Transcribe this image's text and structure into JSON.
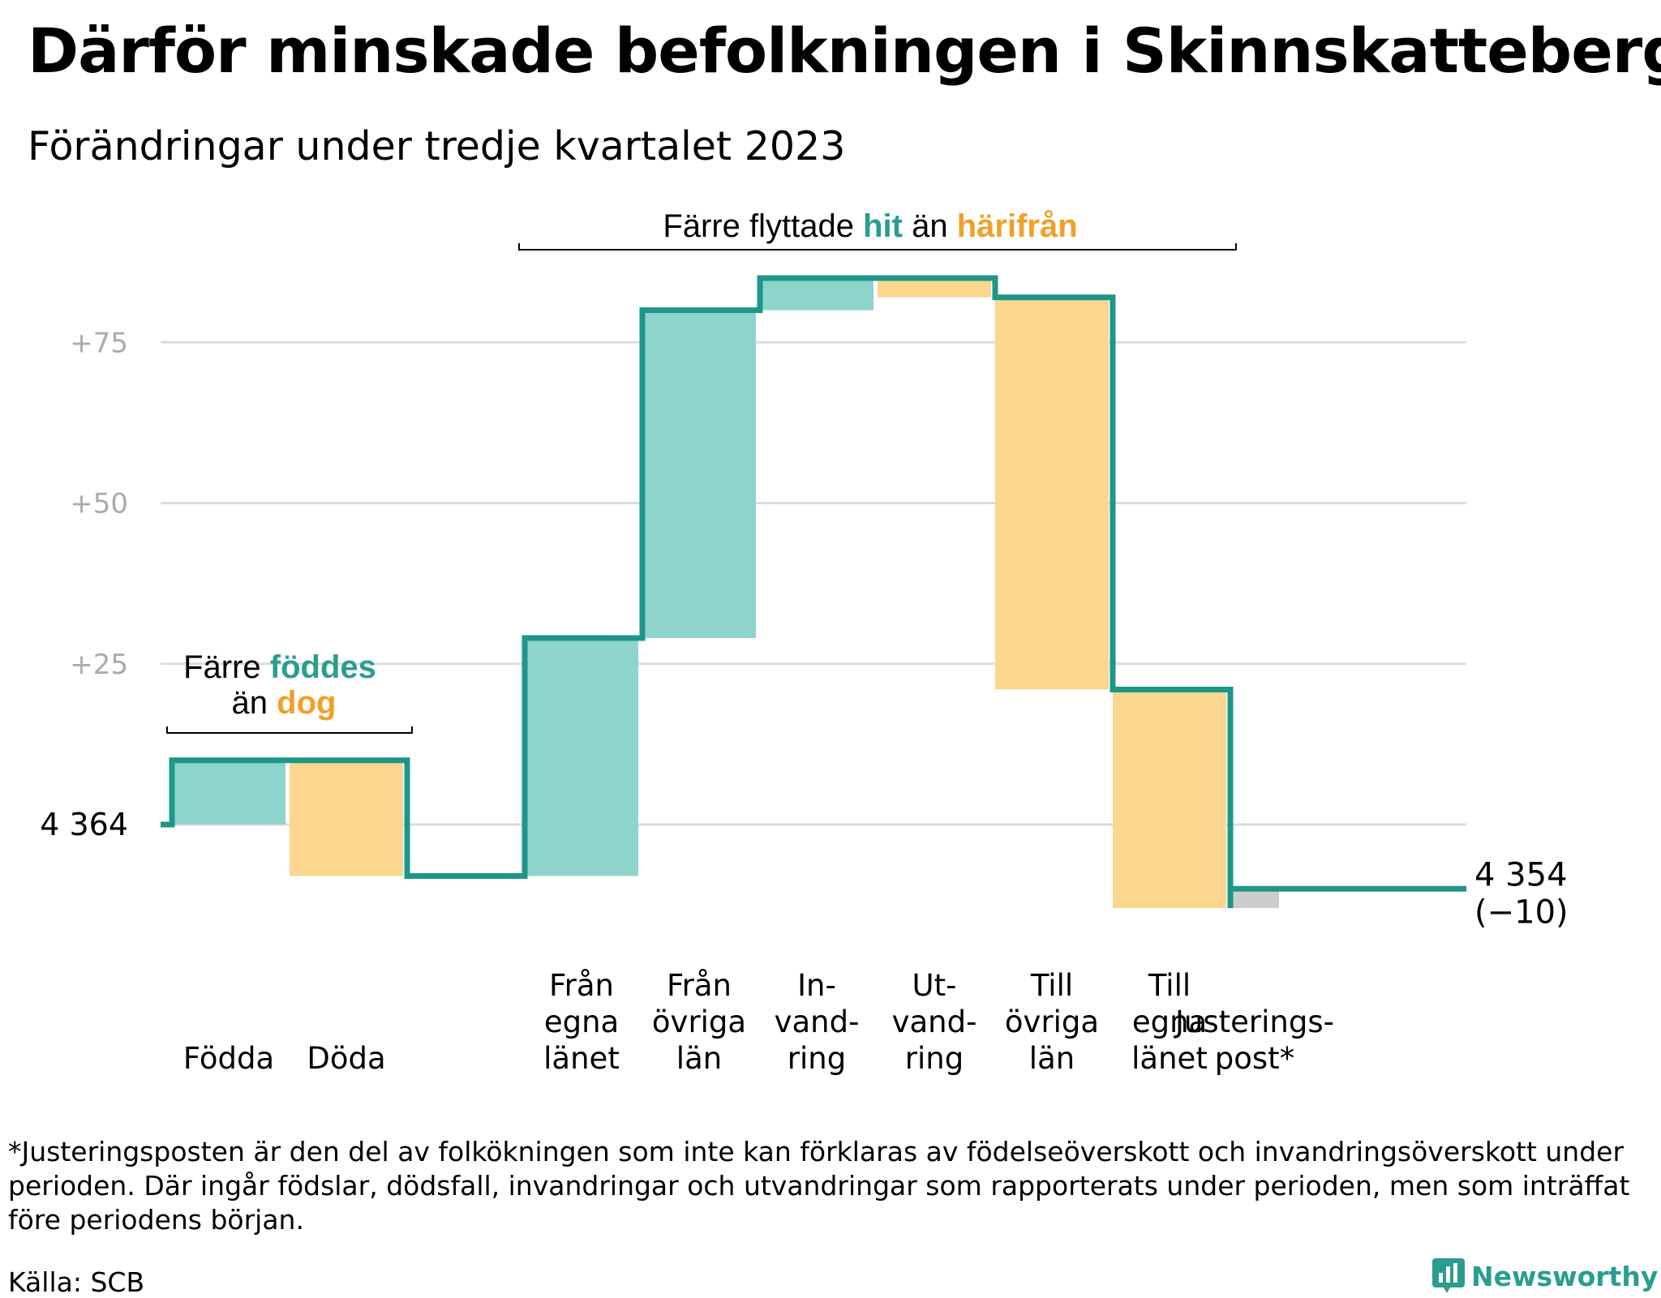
{
  "title": "Därför minskade befolkningen i Skinnskatteberg",
  "subtitle": "Förändringar under tredje kvartalet 2023",
  "colors": {
    "increase": "#8dd4cc",
    "decrease": "#fad68f",
    "adjustment": "#cccccc",
    "line": "#1e9688",
    "teal_text": "#2a9d8f",
    "orange_text": "#f0a02a",
    "grid": "#dddddd",
    "tick": "#aaaaaa"
  },
  "chart_data": {
    "type": "waterfall",
    "start": {
      "label": "4 364",
      "value": 4364
    },
    "end": {
      "label": "4 354",
      "sublabel": "(−10)",
      "value": 4354,
      "change": -10
    },
    "y_ticks": [
      {
        "label": "+75",
        "value": 75
      },
      {
        "label": "+50",
        "value": 50
      },
      {
        "label": "+25",
        "value": 25
      }
    ],
    "ylim": [
      -15,
      87
    ],
    "steps": [
      {
        "lines": [
          "Födda"
        ],
        "value": 10,
        "kind": "increase"
      },
      {
        "lines": [
          "Döda"
        ],
        "value": -18,
        "kind": "decrease"
      },
      {
        "lines": [
          "Från",
          "egna",
          "länet"
        ],
        "value": 37,
        "kind": "increase"
      },
      {
        "lines": [
          "Från",
          "övriga",
          "län"
        ],
        "value": 51,
        "kind": "increase"
      },
      {
        "lines": [
          "In-",
          "vand-",
          "ring"
        ],
        "value": 5,
        "kind": "increase"
      },
      {
        "lines": [
          "Ut-",
          "vand-",
          "ring"
        ],
        "value": -3,
        "kind": "decrease"
      },
      {
        "lines": [
          "Till",
          "övriga",
          "län"
        ],
        "value": -61,
        "kind": "decrease"
      },
      {
        "lines": [
          "Till",
          "egna",
          "länet"
        ],
        "value": -34,
        "kind": "decrease"
      },
      {
        "lines": [
          "Justerings-",
          "post*"
        ],
        "value": 3,
        "kind": "adjustment"
      }
    ],
    "annotations": [
      {
        "parts": [
          {
            "text": "Färre ",
            "style": "plain"
          },
          {
            "text": "föddes",
            "style": "teal"
          }
        ],
        "parts2": [
          {
            "text": "än ",
            "style": "plain"
          },
          {
            "text": "dog",
            "style": "orange"
          }
        ]
      },
      {
        "parts": [
          {
            "text": "Färre flyttade ",
            "style": "plain"
          },
          {
            "text": "hit",
            "style": "teal"
          },
          {
            "text": " än ",
            "style": "plain"
          },
          {
            "text": "härifrån",
            "style": "orange"
          }
        ]
      }
    ]
  },
  "footnote": "*Justeringsposten är den del av folkökningen som inte kan förklaras av födelseöverskott och invandringsöverskott under perioden. Där ingår födslar, dödsfall, invandringar och utvandringar som rapporterats under perioden, men som inträffat före periodens början.",
  "source": "Källa: SCB",
  "brand": {
    "name": "Newsworthy",
    "icon": "newsworthy-logo-icon"
  }
}
